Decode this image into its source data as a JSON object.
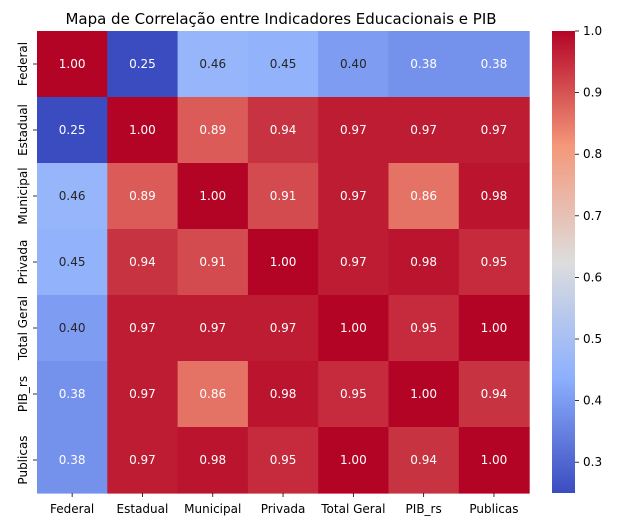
{
  "chart_data": {
    "type": "heatmap",
    "title": "Mapa de Correlação entre Indicadores Educacionais e PIB",
    "x_labels": [
      "Federal",
      "Estadual",
      "Municipal",
      "Privada",
      "Total Geral",
      "PIB_rs",
      "Publicas"
    ],
    "y_labels": [
      "Federal",
      "Estadual",
      "Municipal",
      "Privada",
      "Total Geral",
      "PIB_rs",
      "Publicas"
    ],
    "values": [
      [
        1.0,
        0.25,
        0.46,
        0.45,
        0.4,
        0.38,
        0.38
      ],
      [
        0.25,
        1.0,
        0.89,
        0.94,
        0.97,
        0.97,
        0.97
      ],
      [
        0.46,
        0.89,
        1.0,
        0.91,
        0.97,
        0.86,
        0.98
      ],
      [
        0.45,
        0.94,
        0.91,
        1.0,
        0.97,
        0.98,
        0.95
      ],
      [
        0.4,
        0.97,
        0.97,
        0.97,
        1.0,
        0.95,
        1.0
      ],
      [
        0.38,
        0.97,
        0.86,
        0.98,
        0.95,
        1.0,
        0.94
      ],
      [
        0.38,
        0.97,
        0.98,
        0.95,
        1.0,
        0.94,
        1.0
      ]
    ],
    "value_format": "2 decimals",
    "colormap": "coolwarm",
    "colorbar": {
      "range": [
        0.25,
        1.0
      ],
      "ticks": [
        0.3,
        0.4,
        0.5,
        0.6,
        0.7,
        0.8,
        0.9,
        1.0
      ],
      "tick_labels": [
        "0.3",
        "0.4",
        "0.5",
        "0.6",
        "0.7",
        "0.8",
        "0.9",
        "1.0"
      ]
    },
    "xlabel": "",
    "ylabel": "",
    "grid": false,
    "legend": "colorbar-right"
  }
}
